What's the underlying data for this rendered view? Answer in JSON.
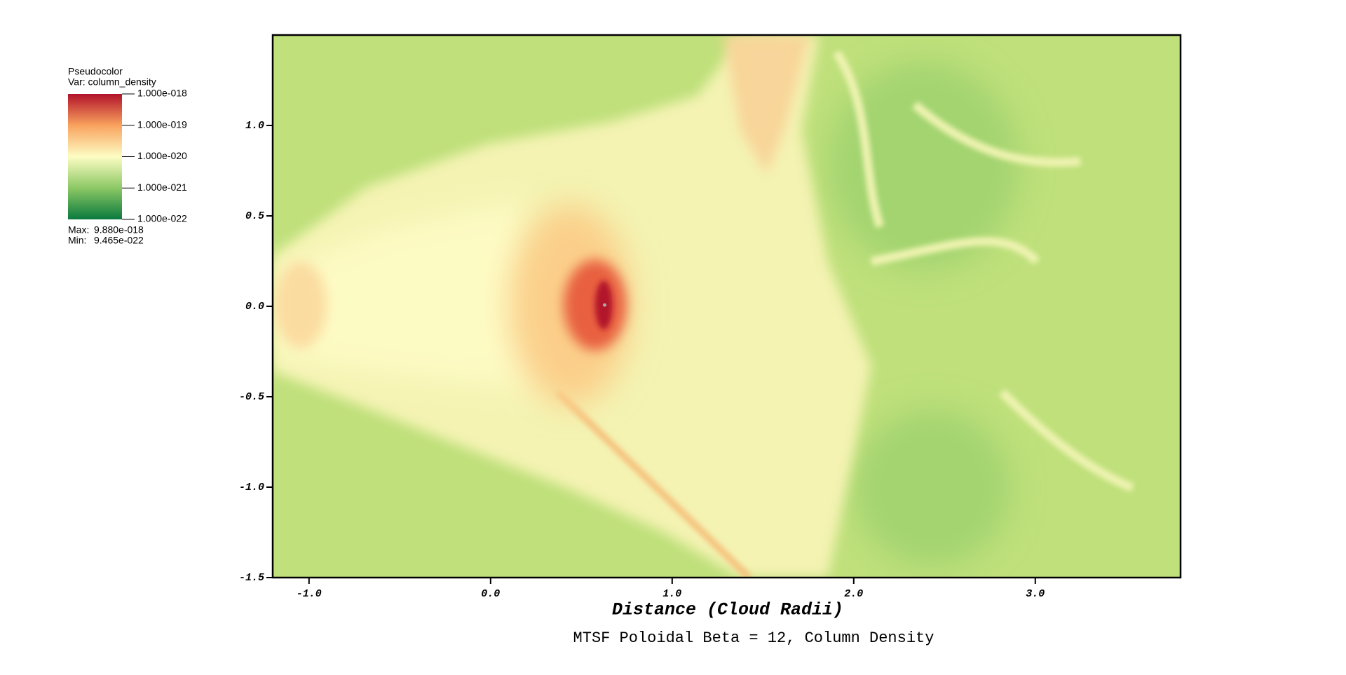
{
  "chart_data": {
    "type": "pseudocolor",
    "title": "MTSF Poloidal Beta = 12, Column Density",
    "xlabel": "Distance (Cloud Radii)",
    "xlim": [
      -1.2,
      3.8
    ],
    "ylim": [
      -1.5,
      1.5
    ],
    "xticks": [
      {
        "value": -1,
        "label": "-1.0"
      },
      {
        "value": 0,
        "label": "0.0"
      },
      {
        "value": 1,
        "label": "1.0"
      },
      {
        "value": 2,
        "label": "2.0"
      },
      {
        "value": 3,
        "label": "3.0"
      }
    ],
    "yticks": [
      {
        "value": -1.5,
        "label": "-1.5"
      },
      {
        "value": -1,
        "label": "-1.0"
      },
      {
        "value": -0.5,
        "label": "-0.5"
      },
      {
        "value": 0,
        "label": "0.0"
      },
      {
        "value": 0.5,
        "label": "0.5"
      },
      {
        "value": 1,
        "label": "1.0"
      }
    ],
    "legend": {
      "title": "Pseudocolor",
      "variable": "Var: column_density",
      "scale": "log",
      "lim": [
        1e-22,
        1e-18
      ],
      "ticks": [
        {
          "value": 1e-18,
          "label": "1.000e-018"
        },
        {
          "value": 1e-19,
          "label": "1.000e-019"
        },
        {
          "value": 1e-20,
          "label": "1.000e-020"
        },
        {
          "value": 1e-21,
          "label": "1.000e-021"
        },
        {
          "value": 1e-22,
          "label": "1.000e-022"
        }
      ],
      "colors": [
        "#0a7a3e",
        "#8cc865",
        "#fdfdc3",
        "#f9a25e",
        "#b1122a"
      ],
      "max_label": "Max:",
      "max": "9.880e-018",
      "min_label": "Min:",
      "min": "9.465e-022"
    }
  }
}
